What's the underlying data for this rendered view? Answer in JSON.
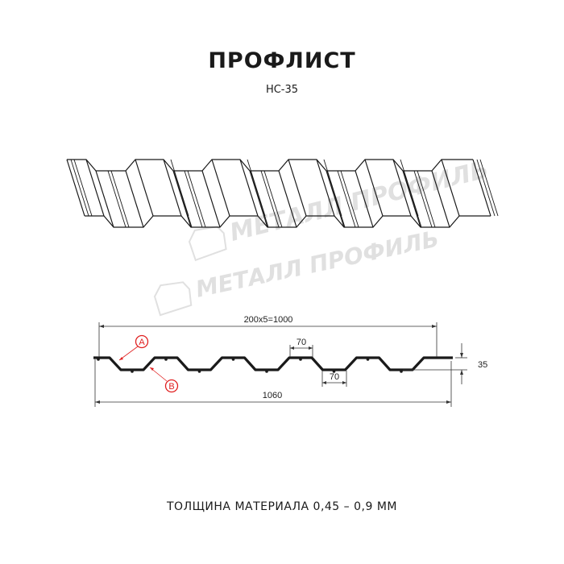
{
  "title": "ПРОФЛИСТ",
  "subtitle": "НС-35",
  "watermark": "МЕТАЛЛ ПРОФИЛЬ",
  "dimensions": {
    "pitch_total": "200x5=1000",
    "full_width": "1060",
    "top_flat": "70",
    "bottom_flat": "70",
    "height": "35"
  },
  "markers": {
    "a": "A",
    "b": "B"
  },
  "footer": "ТОЛЩИНА МАТЕРИАЛА 0,45 – 0,9 ММ",
  "colors": {
    "line": "#1a1a1a",
    "marker": "#e02020",
    "watermark": "#c8c8c8"
  }
}
